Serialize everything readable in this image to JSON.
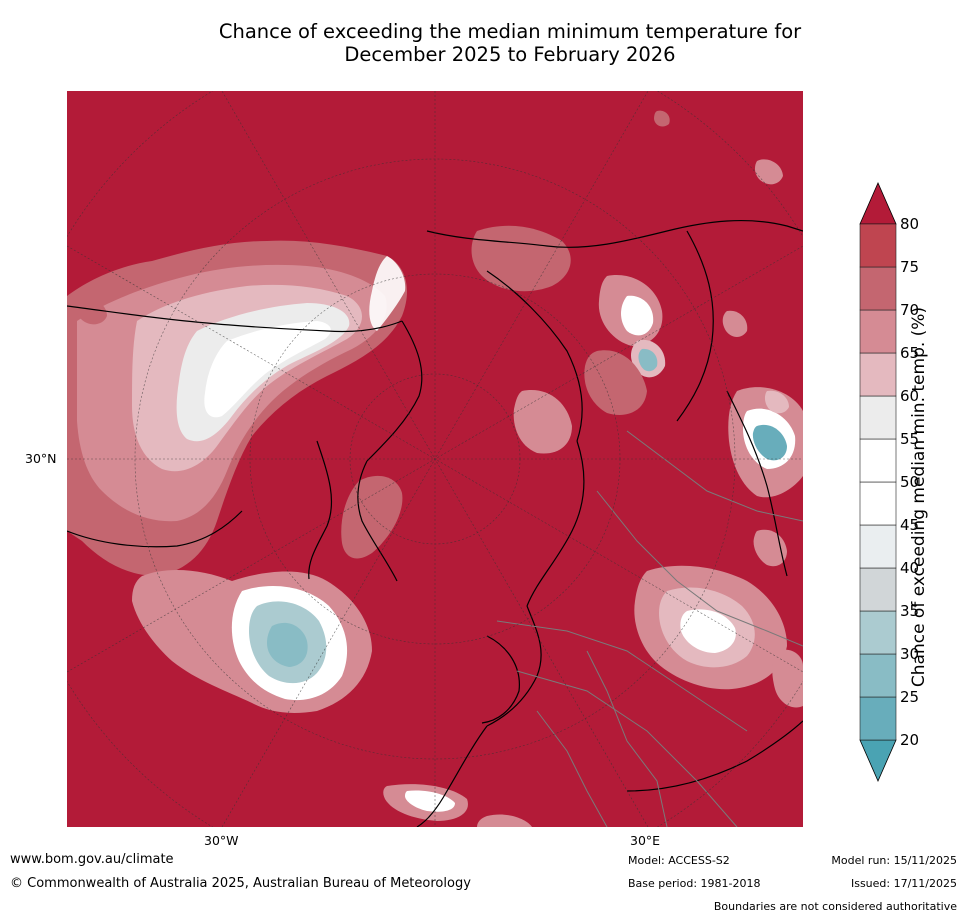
{
  "title": {
    "line1": "Chance of exceeding the median minimum temperature for",
    "line2": "December 2025 to February 2026"
  },
  "map": {
    "projection": "north-polar-stereographic",
    "lat_label": "30°N",
    "lon_labels": [
      "30°W",
      "30°E"
    ],
    "background_color": "#b31b38",
    "coastline_color": "#000000",
    "border_color": "#7a7a7a"
  },
  "colorbar": {
    "label": "Chance of exceeding median min. temp. (%)",
    "ticks": [
      "20",
      "25",
      "30",
      "35",
      "40",
      "45",
      "50",
      "55",
      "60",
      "65",
      "70",
      "75",
      "80"
    ],
    "colors": [
      "#4aa3b3",
      "#68adbb",
      "#89bcc5",
      "#abcbd0",
      "#d1d6d8",
      "#eaeef0",
      "#ffffff",
      "#ffffff",
      "#ececec",
      "#e4b9bf",
      "#d58b94",
      "#c46670",
      "#bf4550",
      "#b31b38"
    ]
  },
  "footer": {
    "url": "www.bom.gov.au/climate",
    "copyright": "© Commonwealth of Australia 2025, Australian Bureau of Meteorology",
    "model": "Model: ACCESS-S2",
    "base_period": "Base period: 1981-2018",
    "model_run": "Model run: 15/11/2025",
    "issued": "Issued: 17/11/2025",
    "disclaimer": "Boundaries are not considered authoritative"
  }
}
